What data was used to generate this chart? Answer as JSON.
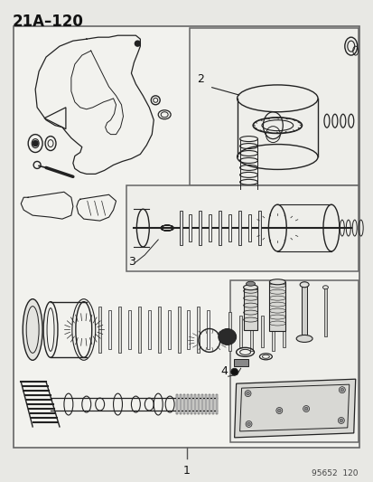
{
  "title": "21A–120",
  "background_color": "#e8e8e4",
  "diagram_bg": "#f0f0ec",
  "border_color": "#444444",
  "line_color": "#222222",
  "label_1": "1",
  "label_2": "2",
  "label_3": "3",
  "label_4": "4",
  "footnote": "95652  120",
  "fig_width": 4.14,
  "fig_height": 5.33,
  "dpi": 100
}
